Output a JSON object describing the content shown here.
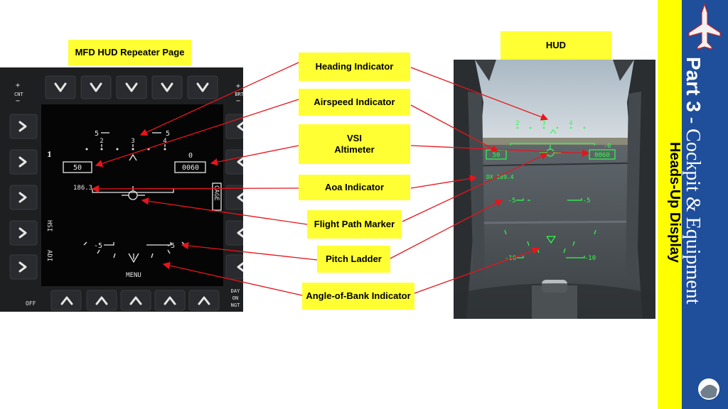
{
  "labels": {
    "mfd_page": "MFD HUD Repeater Page",
    "hud": "HUD",
    "heading": "Heading Indicator",
    "airspeed": "Airspeed Indicator",
    "vsi_alt": "VSI\nAltimeter",
    "aoa": "Aoa Indicator",
    "fpm": "Flight Path Marker",
    "pitch": "Pitch Ladder",
    "aob": "Angle-of-Bank Indicator"
  },
  "side": {
    "part_bold": "Part 3",
    "part_rest": " - Cockpit & Equipment",
    "section": "Heads-Up Display"
  },
  "mfd": {
    "top_left_plus": "+",
    "top_left_label": "CNT",
    "top_left_minus": "−",
    "top_right_plus": "+",
    "top_right_label": "BRT",
    "top_right_minus": "−",
    "off": "OFF",
    "day": "DAY",
    "on": "ON",
    "ngt": "NGT",
    "hsi": "HSI",
    "adi": "ADI",
    "cage": "CAGE",
    "menu": "MENU",
    "airspeed": "50",
    "altitude": "0060",
    "vsi": "0",
    "aoa": "186.3",
    "heading_ticks": [
      "2",
      "3",
      "4"
    ],
    "pitch_top": "5",
    "pitch_bottom": "-5",
    "marker_left": "1"
  },
  "hud": {
    "heading_ticks": [
      "2",
      "3",
      "4"
    ],
    "airspeed": "50",
    "altitude": "0060",
    "vsi": "-0",
    "aoa": "DX 189.4",
    "pitch_5": "-5",
    "pitch_10": "-10"
  },
  "colors": {
    "label_bg": "#ffff33",
    "hud_green": "#2cff4a",
    "arrow_red": "#e8141c",
    "side_blue": "#1f4e9a",
    "side_yellow": "#ffff00"
  }
}
